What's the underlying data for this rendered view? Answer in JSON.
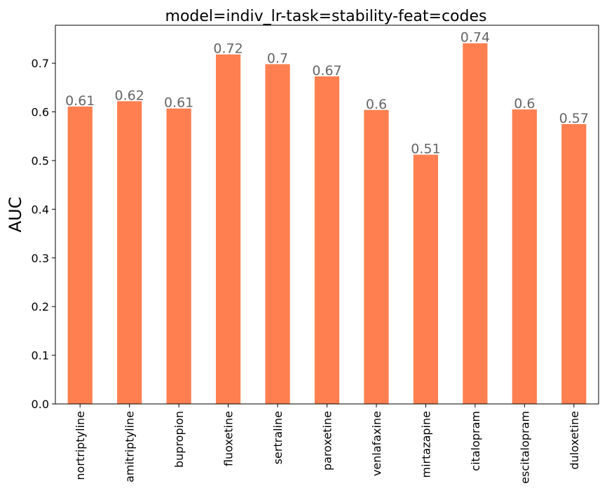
{
  "chart_data": {
    "type": "bar",
    "title": "model=indiv_lr-task=stability-feat=codes",
    "xlabel": "",
    "ylabel": "AUC",
    "categories": [
      "nortriptyline",
      "amitriptyline",
      "bupropion",
      "fluoxetine",
      "sertraline",
      "paroxetine",
      "venlafaxine",
      "mirtazapine",
      "citalopram",
      "escitalopram",
      "duloxetine"
    ],
    "values": [
      0.611,
      0.622,
      0.607,
      0.718,
      0.698,
      0.673,
      0.604,
      0.512,
      0.741,
      0.605,
      0.575
    ],
    "data_labels": [
      "0.61",
      "0.62",
      "0.61",
      "0.72",
      "0.7",
      "0.67",
      "0.6",
      "0.51",
      "0.74",
      "0.6",
      "0.57"
    ],
    "yticks": [
      "0.0",
      "0.1",
      "0.2",
      "0.3",
      "0.4",
      "0.5",
      "0.6",
      "0.7"
    ],
    "ylim": [
      0,
      0.778
    ],
    "grid": false,
    "bar_color": "#ff7f50",
    "label_color": "#666666"
  }
}
